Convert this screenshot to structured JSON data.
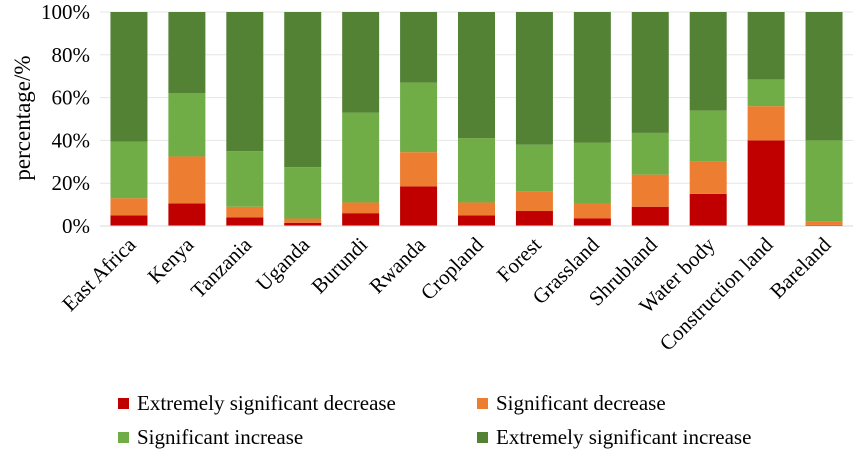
{
  "chart_data": {
    "type": "bar",
    "stacked": true,
    "title": "",
    "xlabel": "",
    "ylabel": "percentage/%",
    "ylim": [
      0,
      100
    ],
    "yticks": [
      "0%",
      "20%",
      "40%",
      "60%",
      "80%",
      "100%"
    ],
    "categories": [
      "East Africa",
      "Kenya",
      "Tanzania",
      "Uganda",
      "Burundi",
      "Rwanda",
      "Cropland",
      "Forest",
      "Grassland",
      "Shrubland",
      "Water body",
      "Construction land",
      "Bareland"
    ],
    "series": [
      {
        "name": "Extremely significant decrease",
        "color": "#c00000",
        "values": [
          5,
          10.5,
          4,
          1.5,
          6,
          18.5,
          5,
          7,
          3.5,
          9,
          15,
          40,
          0.5
        ]
      },
      {
        "name": "Significant decrease",
        "color": "#ed7d31",
        "values": [
          8,
          22,
          5,
          2,
          5,
          16,
          6,
          9,
          7,
          15,
          15,
          16,
          1.5
        ]
      },
      {
        "name": "Significant increase",
        "color": "#70ad47",
        "values": [
          26.5,
          29.5,
          26,
          24,
          42,
          32.5,
          30,
          22,
          28.5,
          19.5,
          24,
          12.5,
          38
        ]
      },
      {
        "name": "Extremely significant increase",
        "color": "#548235",
        "values": [
          60.5,
          38,
          65,
          72.5,
          47,
          33,
          59,
          62,
          61,
          56.5,
          46,
          31.5,
          60
        ]
      }
    ],
    "legend_position": "bottom"
  }
}
